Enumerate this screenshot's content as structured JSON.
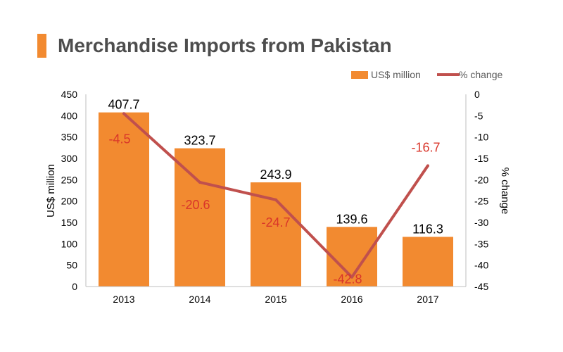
{
  "colors": {
    "accent": "#f28a30",
    "bar": "#f28a30",
    "line": "#c0504d",
    "line_label": "#d9352a",
    "title": "#4d4d4d",
    "axis": "#4d4d4d"
  },
  "chart_data": {
    "type": "bar",
    "title": "Merchandise Imports from Pakistan",
    "categories": [
      "2013",
      "2014",
      "2015",
      "2016",
      "2017"
    ],
    "series": [
      {
        "name": "US$ million",
        "type": "bar",
        "axis": "left",
        "values": [
          407.7,
          323.7,
          243.9,
          139.6,
          116.3
        ],
        "labels": [
          "407.7",
          "323.7",
          "243.9",
          "139.6",
          "116.3"
        ]
      },
      {
        "name": "% change",
        "type": "line",
        "axis": "right",
        "values": [
          -4.5,
          -20.6,
          -24.7,
          -42.8,
          -16.7
        ],
        "labels": [
          "-4.5",
          "-20.6",
          "-24.7",
          "-42.8",
          "-16.7"
        ]
      }
    ],
    "ylabel": "US$ million",
    "ylim": [
      0,
      450
    ],
    "yticks": [
      "0",
      "50",
      "100",
      "150",
      "200",
      "250",
      "300",
      "350",
      "400",
      "450"
    ],
    "y2label": "% change",
    "y2lim": [
      -45,
      0
    ],
    "y2ticks": [
      "0",
      "-5",
      "-10",
      "-15",
      "-20",
      "-25",
      "-30",
      "-35",
      "-40",
      "-45"
    ],
    "grid": false,
    "legend_position": "top-right"
  }
}
